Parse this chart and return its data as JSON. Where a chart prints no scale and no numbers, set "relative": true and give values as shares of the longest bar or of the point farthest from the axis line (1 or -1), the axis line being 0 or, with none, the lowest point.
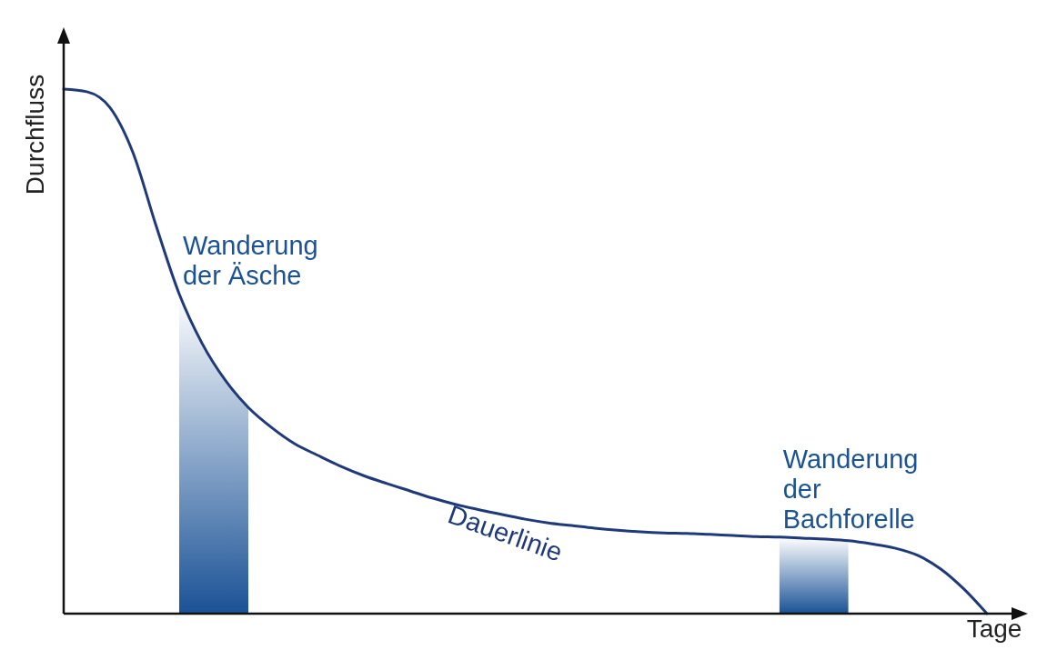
{
  "chart_data": {
    "type": "line",
    "relative": true,
    "xlabel": "Tage",
    "ylabel": "Durchfluss",
    "categories": [
      null,
      null,
      null,
      null,
      null,
      null,
      null,
      null,
      null,
      null,
      null,
      null,
      null,
      null,
      null,
      null,
      null,
      null,
      null,
      null,
      null,
      null,
      null,
      null,
      null,
      null,
      null,
      null,
      null,
      null,
      null,
      null,
      null,
      null,
      null,
      null,
      null,
      null,
      null,
      null,
      null
    ],
    "series": [
      {
        "name": "Wanderung der Äsche",
        "type": "area",
        "color": "#1a5296",
        "values": [
          null,
          null,
          null,
          null,
          null,
          0.61,
          0.515,
          0.445,
          0.393,
          null,
          null,
          null,
          null,
          null,
          null,
          null,
          null,
          null,
          null,
          null,
          null,
          null,
          null,
          null,
          null,
          null,
          null,
          null,
          null,
          null,
          null,
          null,
          null,
          null,
          null,
          null,
          null,
          null,
          null,
          null,
          null
        ]
      },
      {
        "name": "Wanderung der Bachforelle",
        "type": "area",
        "color": "#1a5296",
        "values": [
          null,
          null,
          null,
          null,
          null,
          null,
          null,
          null,
          null,
          null,
          null,
          null,
          null,
          null,
          null,
          null,
          null,
          null,
          null,
          null,
          null,
          null,
          null,
          null,
          null,
          null,
          null,
          null,
          null,
          null,
          null,
          0.146,
          0.144,
          0.142,
          0.139,
          null,
          null,
          null,
          null,
          null,
          null
        ]
      },
      {
        "name": "Dauerlinie",
        "color": "#1f3a7a",
        "values": [
          1,
          0.995,
          0.965,
          0.879,
          0.74,
          0.61,
          0.515,
          0.445,
          0.393,
          0.355,
          0.324,
          0.302,
          0.281,
          0.263,
          0.248,
          0.234,
          0.22,
          0.208,
          0.198,
          0.189,
          0.18,
          0.173,
          0.168,
          0.163,
          0.159,
          0.156,
          0.154,
          0.153,
          0.151,
          0.149,
          0.147,
          0.146,
          0.144,
          0.142,
          0.139,
          0.133,
          0.125,
          0.111,
          0.085,
          0.047,
          0
        ]
      }
    ]
  }
}
